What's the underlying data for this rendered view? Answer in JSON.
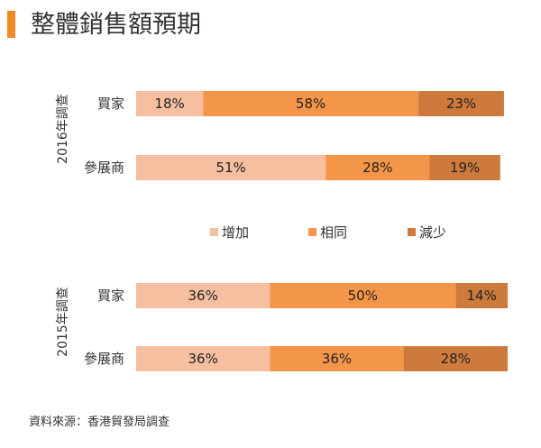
{
  "page": {
    "title": "整體銷售額預期",
    "source": "資料來源：香港貿發局調查"
  },
  "colors": {
    "accent": "#f08a24",
    "increase": "#f6c0a0",
    "same": "#f4964a",
    "decrease": "#cd7a3c",
    "text": "#333333"
  },
  "chart_data": {
    "type": "bar",
    "orientation": "horizontal",
    "stacked": true,
    "title": "整體銷售額預期",
    "unit": "%",
    "xlim": [
      0,
      100
    ],
    "legend": {
      "position": "center",
      "entries": [
        "增加",
        "相同",
        "減少"
      ]
    },
    "groups": [
      {
        "label": "2016年調查",
        "categories": [
          "買家",
          "參展商"
        ],
        "series": [
          {
            "name": "增加",
            "values": [
              18,
              51
            ]
          },
          {
            "name": "相同",
            "values": [
              58,
              28
            ]
          },
          {
            "name": "減少",
            "values": [
              23,
              19
            ]
          }
        ],
        "labels": [
          [
            "18%",
            "58%",
            "23%"
          ],
          [
            "51%",
            "28%",
            "19%"
          ]
        ]
      },
      {
        "label": "2015年調查",
        "categories": [
          "買家",
          "參展商"
        ],
        "series": [
          {
            "name": "增加",
            "values": [
              36,
              36
            ]
          },
          {
            "name": "相同",
            "values": [
              50,
              36
            ]
          },
          {
            "name": "減少",
            "values": [
              14,
              28
            ]
          }
        ],
        "labels": [
          [
            "36%",
            "50%",
            "14%"
          ],
          [
            "36%",
            "36%",
            "28%"
          ]
        ]
      }
    ]
  }
}
